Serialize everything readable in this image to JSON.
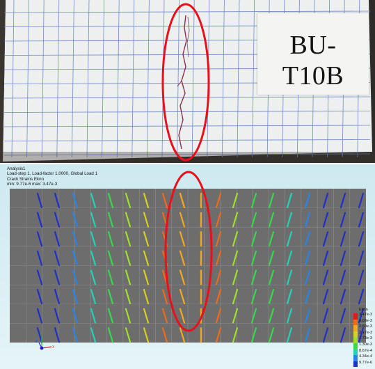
{
  "photo": {
    "specimen_label": {
      "line1": "BU-",
      "line2": "T10B"
    },
    "highlight_color": "#e8101a"
  },
  "fe_view": {
    "info_lines": [
      "Analysis1",
      "Load-step 1, Load-factor 1.0000, Global Load 1",
      "Crack Strains Eknn",
      "min: 9.77e-6 max: 3.47e-3"
    ],
    "legend": {
      "title": "Eknn",
      "ticks": [
        "3.47e-3",
        "3.03e-3",
        "2.60e-3",
        "2.17e-3",
        "1.73e-3",
        "1.30e-3",
        "8.67e-4",
        "4.34e-4",
        "9.77e-6"
      ],
      "colors": [
        "#e11a1a",
        "#f06a1a",
        "#f3a91f",
        "#d7cf21",
        "#9fe12a",
        "#37d84a",
        "#22d3b8",
        "#2a84e6",
        "#1f2fc8"
      ]
    },
    "axis_labels": {
      "x": "X",
      "y": "Y",
      "z": "Z"
    },
    "highlight_color": "#e8101a"
  }
}
